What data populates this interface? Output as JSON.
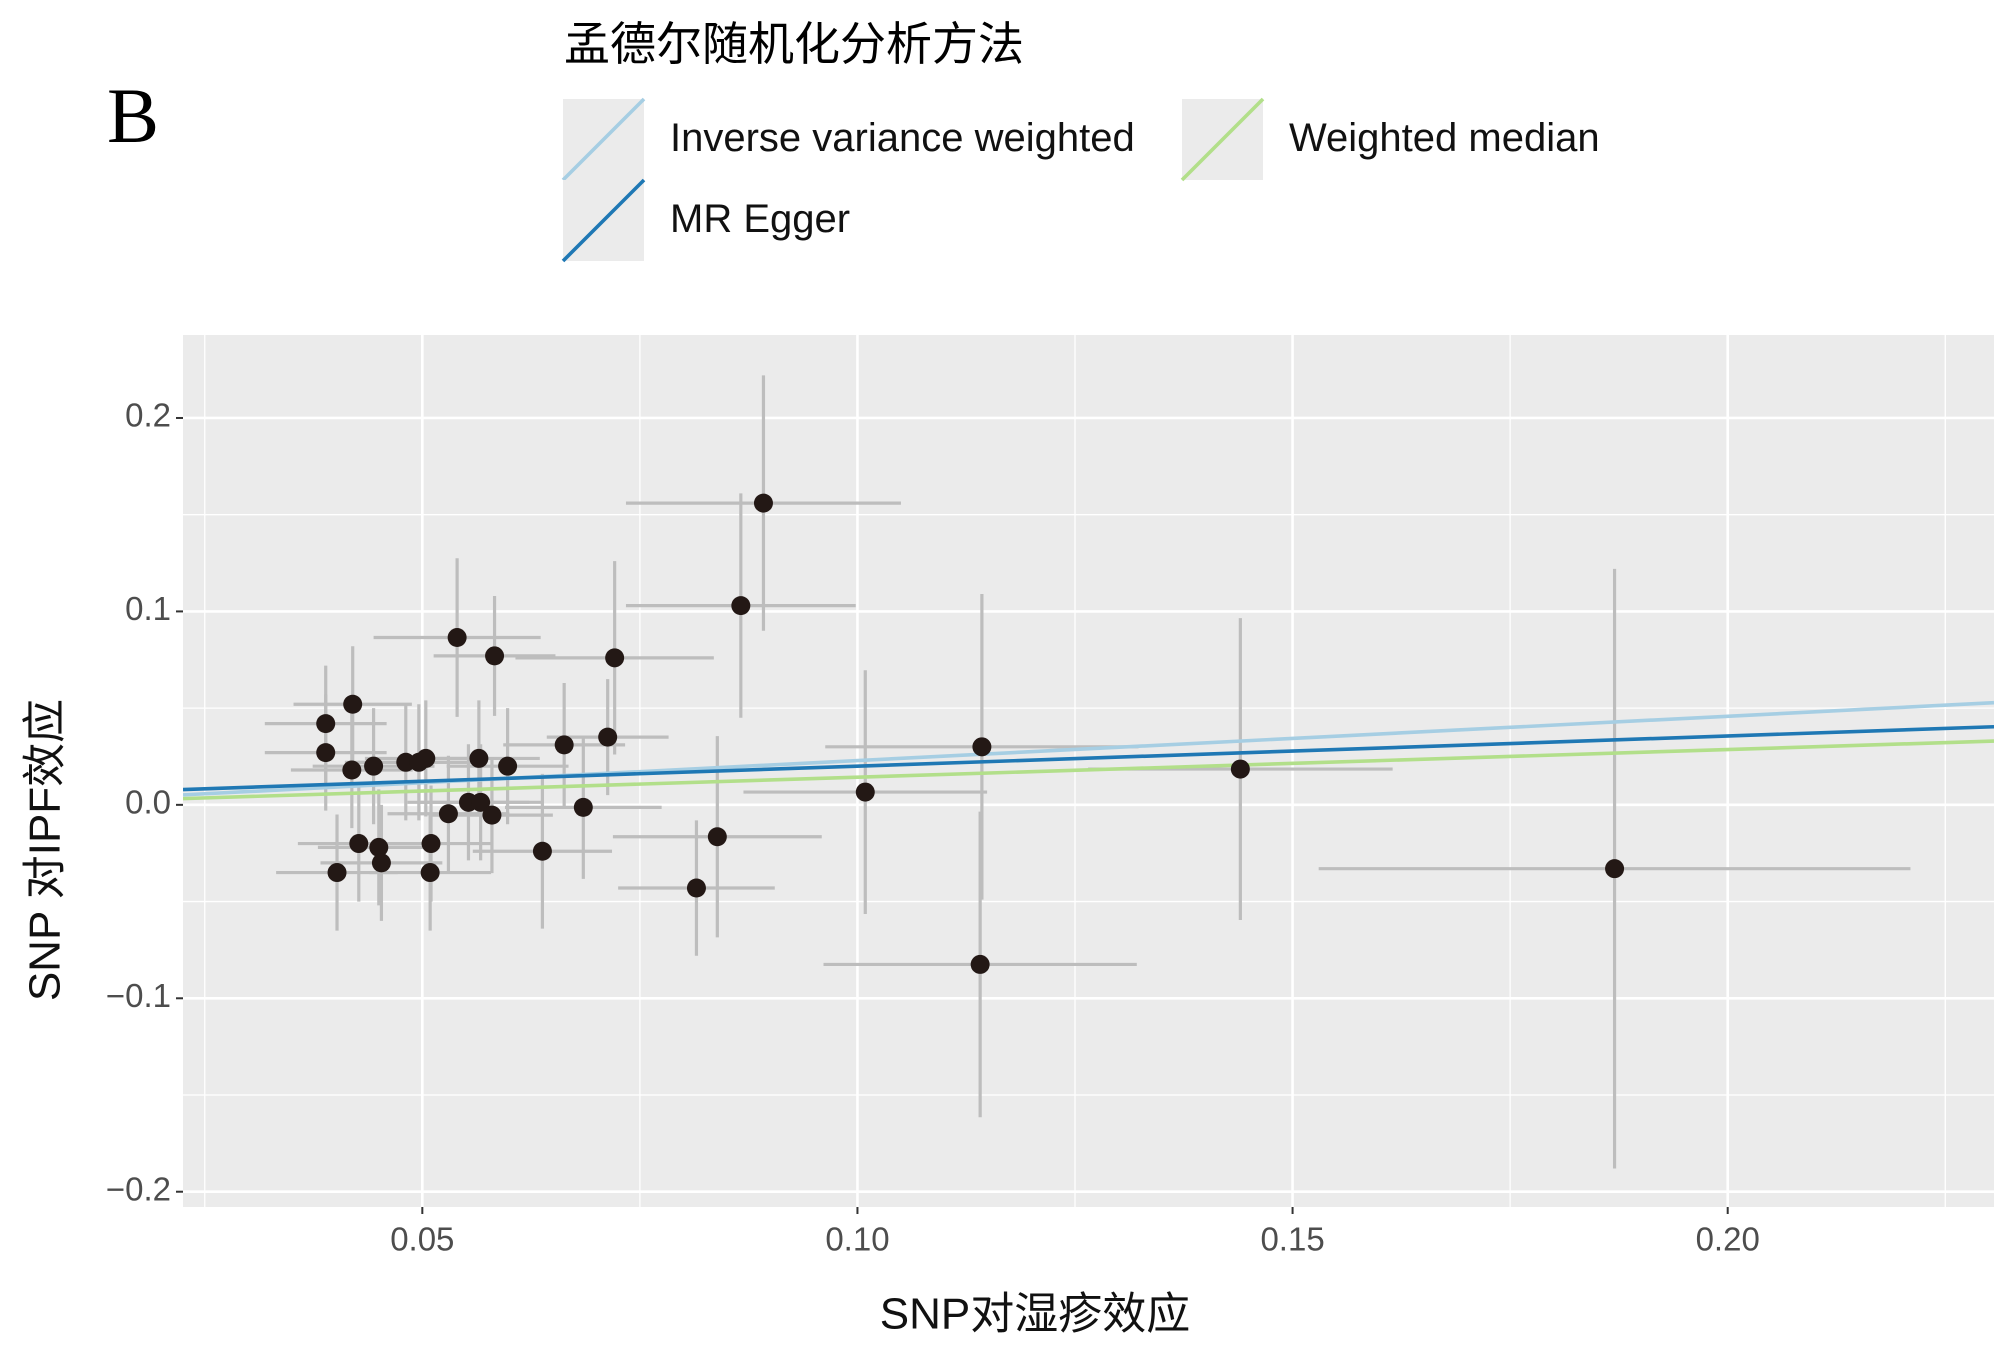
{
  "chart_data": {
    "type": "scatter",
    "panel_label": "B",
    "xlabel": "SNP对湿疹效应",
    "ylabel": "SNP 对IPF效应",
    "legend_title": "孟德尔随机化分析方法",
    "x": [
      0.0892,
      0.0866,
      0.054,
      0.0583,
      0.0721,
      0.042,
      0.0389,
      0.0389,
      0.0419,
      0.0444,
      0.0481,
      0.0496,
      0.0504,
      0.0565,
      0.0598,
      0.0663,
      0.0713,
      0.1143,
      0.1009,
      0.144,
      0.187,
      0.1141,
      0.0815,
      0.0839,
      0.0685,
      0.0638,
      0.053,
      0.0553,
      0.0567,
      0.058,
      0.051,
      0.0509,
      0.0427,
      0.045,
      0.0453,
      0.0402
    ],
    "y": [
      0.156,
      0.103,
      0.0865,
      0.077,
      0.076,
      0.052,
      0.042,
      0.027,
      0.018,
      0.02,
      0.022,
      0.022,
      0.024,
      0.024,
      0.02,
      0.031,
      0.035,
      0.03,
      0.0066,
      0.0185,
      -0.033,
      -0.0825,
      -0.043,
      -0.0165,
      -0.0013,
      -0.024,
      -0.0046,
      0.0013,
      0.0013,
      -0.0053,
      -0.02,
      -0.035,
      -0.02,
      -0.022,
      -0.03,
      -0.035
    ],
    "xerr": [
      0.0158,
      0.0132,
      0.0096,
      0.007,
      0.0114,
      0.0068,
      0.007,
      0.007,
      0.007,
      0.007,
      0.007,
      0.007,
      0.007,
      0.007,
      0.007,
      0.007,
      0.007,
      0.018,
      0.014,
      0.0175,
      0.034,
      0.018,
      0.009,
      0.012,
      0.009,
      0.008,
      0.007,
      0.007,
      0.007,
      0.007,
      0.007,
      0.007,
      0.007,
      0.007,
      0.007,
      0.007
    ],
    "yerr": [
      0.066,
      0.058,
      0.041,
      0.031,
      0.05,
      0.03,
      0.03,
      0.03,
      0.03,
      0.03,
      0.03,
      0.03,
      0.03,
      0.03,
      0.03,
      0.032,
      0.03,
      0.079,
      0.063,
      0.078,
      0.155,
      0.079,
      0.035,
      0.052,
      0.037,
      0.04,
      0.03,
      0.03,
      0.03,
      0.03,
      0.03,
      0.03,
      0.03,
      0.03,
      0.03,
      0.03
    ],
    "point_color": "#231815",
    "errorbar_color": "#bdbdbd",
    "lines": [
      {
        "name": "Inverse variance weighted",
        "color": "#a6cee3",
        "slope": 0.229,
        "intercept": 0
      },
      {
        "name": "MR Egger",
        "color": "#1f78b4",
        "slope": 0.156,
        "intercept": 0.0044
      },
      {
        "name": "Weighted median",
        "color": "#b2df8a",
        "slope": 0.143,
        "intercept": 0
      }
    ],
    "xlim": [
      0.0225,
      0.2306
    ],
    "ylim": [
      -0.2079,
      0.2429
    ],
    "xticks": [
      0.05,
      {
        "value": 0.1,
        "label": "0.10"
      },
      0.15,
      {
        "value": 0.2,
        "label": "0.20"
      }
    ],
    "yticks": [
      {
        "value": -0.2,
        "label": "−0.2"
      },
      {
        "value": -0.1,
        "label": "−0.1"
      },
      {
        "value": 0,
        "label": "0.0"
      },
      0.1,
      0.2
    ],
    "grid": true,
    "minor_grid": true,
    "legend_position": "top"
  }
}
